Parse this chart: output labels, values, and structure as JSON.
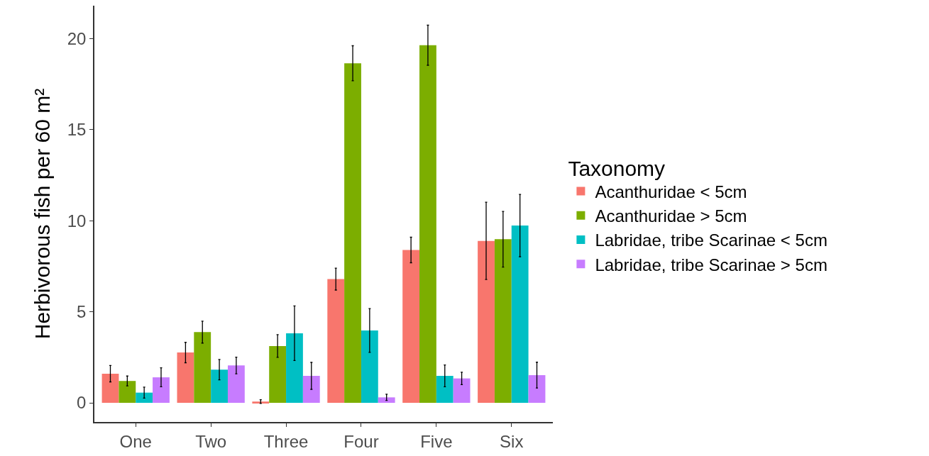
{
  "chart_data": {
    "type": "bar",
    "ylabel": "Herbivorous fish per 60 m²",
    "legend_title": "Taxonomy",
    "categories": [
      "One",
      "Two",
      "Three",
      "Four",
      "Five",
      "Six"
    ],
    "series": [
      {
        "name": "Acanthuridae < 5cm",
        "color": "#f8766d",
        "values": [
          1.6,
          2.76,
          0.07,
          6.79,
          8.39,
          8.89
        ],
        "errors": [
          0.45,
          0.56,
          0.1,
          0.6,
          0.7,
          2.12
        ]
      },
      {
        "name": "Acanthuridae > 5cm",
        "color": "#7cae00",
        "values": [
          1.2,
          3.88,
          3.12,
          18.64,
          19.63,
          8.98
        ],
        "errors": [
          0.27,
          0.6,
          0.62,
          0.96,
          1.1,
          1.53
        ]
      },
      {
        "name": "Labridae, tribe Scarinae < 5cm",
        "color": "#00bfc4",
        "values": [
          0.56,
          1.82,
          3.82,
          3.97,
          1.48,
          9.73
        ],
        "errors": [
          0.3,
          0.56,
          1.5,
          1.2,
          0.6,
          1.71
        ]
      },
      {
        "name": "Labridae, tribe Scarinae > 5cm",
        "color": "#c77cff",
        "values": [
          1.4,
          2.05,
          1.48,
          0.3,
          1.34,
          1.52
        ],
        "errors": [
          0.52,
          0.46,
          0.74,
          0.17,
          0.34,
          0.71
        ]
      }
    ],
    "ylim": [
      -1.05,
      21.8
    ],
    "yticks": [
      0,
      5,
      10,
      15,
      20
    ],
    "legend": "right"
  }
}
